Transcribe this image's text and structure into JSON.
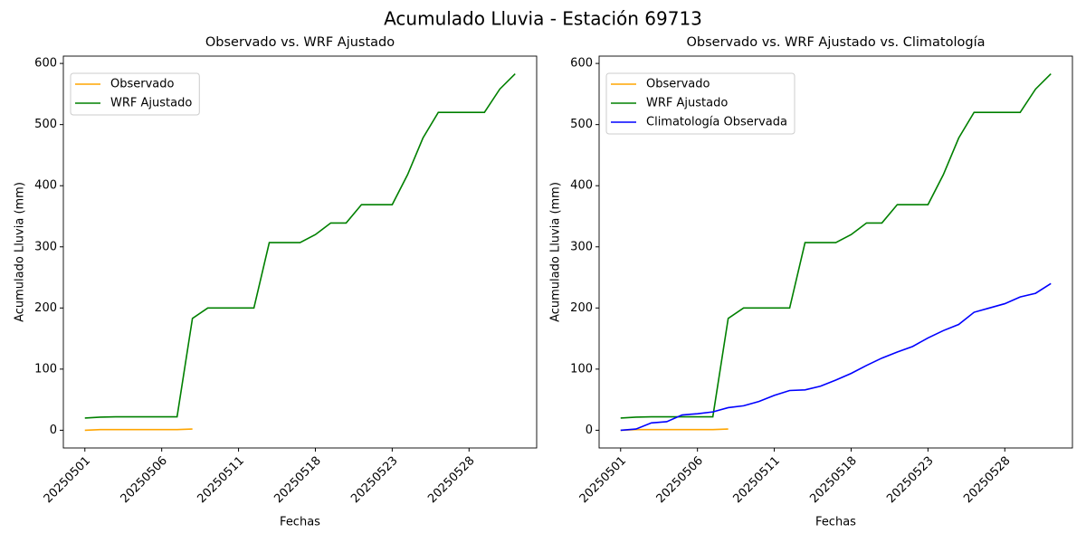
{
  "title": "Acumulado Lluvia - Estación 69713",
  "chart_data": [
    {
      "type": "line",
      "title": "Observado vs. WRF Ajustado",
      "xlabel": "Fechas",
      "ylabel": "Acumulado Lluvia (mm)",
      "categories": [
        "20250501",
        null,
        null,
        null,
        null,
        "20250506",
        null,
        null,
        null,
        null,
        "20250511",
        null,
        null,
        null,
        null,
        "20250518",
        null,
        null,
        null,
        null,
        "20250523",
        null,
        null,
        null,
        null,
        "20250528",
        null,
        null,
        null
      ],
      "ylim": [
        -29,
        612
      ],
      "yticks": [
        0,
        100,
        200,
        300,
        400,
        500,
        600
      ],
      "legend": "upper left",
      "series": [
        {
          "name": "Observado",
          "color": "orange",
          "values": [
            0,
            1,
            1,
            1,
            1,
            1,
            1,
            2,
            null,
            null,
            null,
            null,
            null,
            null,
            null,
            null,
            null,
            null,
            null,
            null,
            null,
            null,
            null,
            null,
            null,
            null,
            null,
            null,
            null
          ]
        },
        {
          "name": "WRF Ajustado",
          "color": "green",
          "values": [
            20,
            21.5,
            22,
            22,
            22,
            22,
            22,
            183,
            200,
            200,
            200,
            200,
            307,
            307,
            307,
            320,
            339,
            339,
            369,
            369,
            369,
            418,
            478,
            520,
            520,
            520,
            520,
            558,
            583
          ]
        }
      ]
    },
    {
      "type": "line",
      "title": "Observado vs. WRF Ajustado vs. Climatología",
      "xlabel": "Fechas",
      "ylabel": "Acumulado Lluvia (mm)",
      "categories": [
        "20250501",
        null,
        null,
        null,
        null,
        "20250506",
        null,
        null,
        null,
        null,
        "20250511",
        null,
        null,
        null,
        null,
        "20250518",
        null,
        null,
        null,
        null,
        "20250523",
        null,
        null,
        null,
        null,
        "20250528",
        null,
        null,
        null
      ],
      "ylim": [
        -29,
        612
      ],
      "yticks": [
        0,
        100,
        200,
        300,
        400,
        500,
        600
      ],
      "legend": "upper left",
      "series": [
        {
          "name": "Observado",
          "color": "orange",
          "values": [
            0,
            1,
            1,
            1,
            1,
            1,
            1,
            2,
            null,
            null,
            null,
            null,
            null,
            null,
            null,
            null,
            null,
            null,
            null,
            null,
            null,
            null,
            null,
            null,
            null,
            null,
            null,
            null,
            null
          ]
        },
        {
          "name": "WRF Ajustado",
          "color": "green",
          "values": [
            20,
            21.5,
            22,
            22,
            22,
            22,
            22,
            183,
            200,
            200,
            200,
            200,
            307,
            307,
            307,
            320,
            339,
            339,
            369,
            369,
            369,
            418,
            478,
            520,
            520,
            520,
            520,
            558,
            583
          ]
        },
        {
          "name": "Climatología Observada",
          "color": "blue",
          "values": [
            0,
            2,
            12,
            14,
            25,
            27,
            30,
            37,
            40,
            47,
            57,
            65,
            66,
            72,
            82,
            93,
            106,
            118,
            128,
            137,
            151,
            163,
            173,
            193,
            200,
            207,
            218,
            224,
            240
          ]
        }
      ]
    }
  ]
}
